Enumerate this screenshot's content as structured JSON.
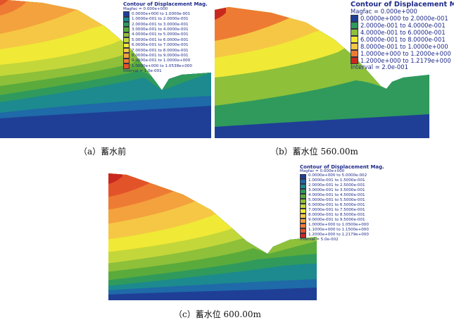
{
  "colors": {
    "c0": "#1f3f96",
    "c1": "#1f6aa8",
    "c2": "#1c8a8e",
    "c3": "#2f9a5c",
    "c4": "#5aab3c",
    "c5": "#8ec03a",
    "c6": "#c4d73a",
    "c7": "#f0e936",
    "c8": "#f6c744",
    "c9": "#f3a23d",
    "c10": "#ee7b33",
    "c11": "#e3532a",
    "c12": "#c8291f"
  },
  "panels": {
    "a": {
      "caption": "（a）蓄水前",
      "legend": {
        "title": "Contour of Displacement Mag.",
        "magfac": "Magfac = 0.000e+000",
        "ranges": [
          {
            "label": "0.0000e+000 to 1.0000e-001",
            "color": "#1f3f96"
          },
          {
            "label": "1.0000e-001 to 2.0000e-001",
            "color": "#1c8a8e"
          },
          {
            "label": "2.0000e-001 to 3.0000e-001",
            "color": "#2f9a5c"
          },
          {
            "label": "3.0000e-001 to 4.0000e-001",
            "color": "#5aab3c"
          },
          {
            "label": "4.0000e-001 to 5.0000e-001",
            "color": "#8ec03a"
          },
          {
            "label": "5.0000e-001 to 6.0000e-001",
            "color": "#c4d73a"
          },
          {
            "label": "6.0000e-001 to 7.0000e-001",
            "color": "#f0e936"
          },
          {
            "label": "7.0000e-001 to 8.0000e-001",
            "color": "#f6c744"
          },
          {
            "label": "8.0000e-001 to 9.0000e-001",
            "color": "#f3a23d"
          },
          {
            "label": "9.0000e-001 to 1.0000e+000",
            "color": "#ee7b33"
          },
          {
            "label": "1.0000e+000 to 1.0538e+000",
            "color": "#e3532a"
          }
        ],
        "interval": "Interval = 1.0e-001"
      }
    },
    "b": {
      "caption": "（b）蓄水位 560.00m",
      "legend": {
        "title": "Contour of Displacement Mag.",
        "magfac": "Magfac = 0.000e+000",
        "ranges": [
          {
            "label": "0.0000e+000 to 2.0000e-001",
            "color": "#1f3f96"
          },
          {
            "label": "2.0000e-001 to 4.0000e-001",
            "color": "#2f9a5c"
          },
          {
            "label": "4.0000e-001 to 6.0000e-001",
            "color": "#8ec03a"
          },
          {
            "label": "6.0000e-001 to 8.0000e-001",
            "color": "#f0e936"
          },
          {
            "label": "8.0000e-001 to 1.0000e+000",
            "color": "#f6c744"
          },
          {
            "label": "1.0000e+000 to 1.2000e+000",
            "color": "#ee7b33"
          },
          {
            "label": "1.2000e+000 to 1.2179e+000",
            "color": "#c8291f"
          }
        ],
        "interval": "Interval = 2.0e-001"
      }
    },
    "c": {
      "caption": "（c）蓄水位 600.00m",
      "legend": {
        "title": "Contour of Displacement Mag.",
        "magfac": "Magfac = 0.000e+000",
        "ranges": [
          {
            "label": "0.0000e+000 to 5.0000e-002",
            "color": "#1f3f96"
          },
          {
            "label": "1.0000e-001 to 1.5000e-001",
            "color": "#1f6aa8"
          },
          {
            "label": "2.0000e-001 to 2.5000e-001",
            "color": "#1c8a8e"
          },
          {
            "label": "3.0000e-001 to 3.5000e-001",
            "color": "#2f9a5c"
          },
          {
            "label": "4.0000e-001 to 4.5000e-001",
            "color": "#5aab3c"
          },
          {
            "label": "5.0000e-001 to 5.5000e-001",
            "color": "#8ec03a"
          },
          {
            "label": "6.0000e-001 to 6.5000e-001",
            "color": "#c4d73a"
          },
          {
            "label": "7.0000e-001 to 7.5000e-001",
            "color": "#f0e936"
          },
          {
            "label": "8.0000e-001 to 8.5000e-001",
            "color": "#f6c744"
          },
          {
            "label": "9.0000e-001 to 9.5000e-001",
            "color": "#f3a23d"
          },
          {
            "label": "1.0000e+000 to 1.0500e+000",
            "color": "#ee7b33"
          },
          {
            "label": "1.1000e+000 to 1.1500e+000",
            "color": "#e3532a"
          },
          {
            "label": "1.2000e+000 to 1.2179e+000",
            "color": "#c8291f"
          }
        ],
        "interval": "Interval = 5.0e-002"
      }
    }
  }
}
